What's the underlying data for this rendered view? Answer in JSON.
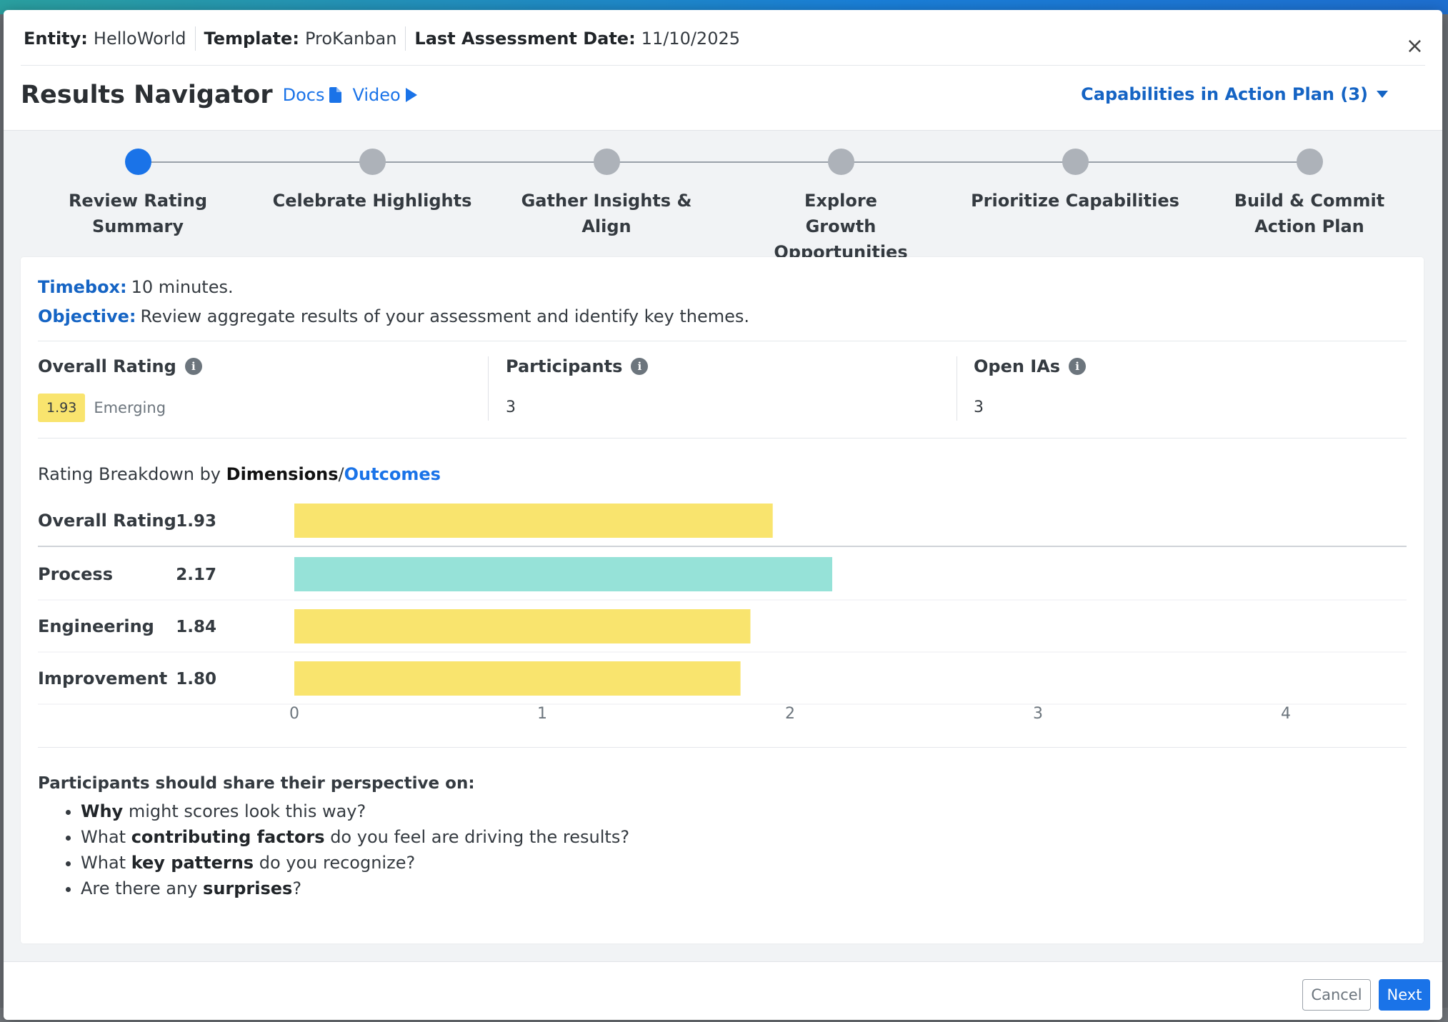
{
  "header": {
    "entity_label": "Entity:",
    "entity_value": "HelloWorld",
    "template_label": "Template:",
    "template_value": "ProKanban",
    "assessment_label": "Last Assessment Date:",
    "assessment_value": "11/10/2025",
    "close_symbol": "×",
    "title": "Results Navigator",
    "docs_label": "Docs",
    "video_label": "Video",
    "capabilities_label": "Capabilities in Action Plan (3)"
  },
  "stepper": {
    "active_index": 0,
    "steps": [
      {
        "label": "Review Rating Summary"
      },
      {
        "label": "Celebrate Highlights"
      },
      {
        "label": "Gather Insights & Align"
      },
      {
        "label": "Explore Growth Opportunities"
      },
      {
        "label": "Prioritize Capabilities"
      },
      {
        "label": "Build & Commit Action Plan"
      }
    ]
  },
  "intro": {
    "timebox_label": "Timebox:",
    "timebox_value": "10 minutes.",
    "objective_label": "Objective:",
    "objective_value": "Review aggregate results of your assessment and identify key themes."
  },
  "stats": {
    "overall_title": "Overall Rating",
    "overall_value": "1.93",
    "overall_level": "Emerging",
    "participants_title": "Participants",
    "participants_value": "3",
    "open_ias_title": "Open IAs",
    "open_ias_value": "3",
    "info_symbol": "i"
  },
  "breakdown": {
    "prefix": "Rating Breakdown by",
    "dimensions_label": "Dimensions",
    "separator": "/",
    "outcomes_label": "Outcomes"
  },
  "chart_data": {
    "type": "bar",
    "orientation": "horizontal",
    "categories": [
      "Overall Rating",
      "Process",
      "Engineering",
      "Improvement"
    ],
    "values": [
      1.93,
      2.17,
      1.84,
      1.8
    ],
    "value_labels": [
      "1.93",
      "2.17",
      "1.84",
      "1.80"
    ],
    "colors": [
      "#f9e46e",
      "#96e2d8",
      "#f9e46e",
      "#f9e46e"
    ],
    "xlim": [
      0,
      4.5
    ],
    "xticks": [
      0,
      1,
      2,
      3,
      4
    ],
    "title": "",
    "xlabel": "",
    "ylabel": ""
  },
  "discussion": {
    "title": "Participants should share their perspective on:",
    "items": [
      {
        "bold": "Why",
        "rest": " might scores look this way?",
        "pre": ""
      },
      {
        "pre": "What ",
        "bold": "contributing factors",
        "rest": " do you feel are driving the results?"
      },
      {
        "pre": "What ",
        "bold": "key patterns",
        "rest": " do you recognize?"
      },
      {
        "pre": "Are there any ",
        "bold": "surprises",
        "rest": "?"
      }
    ]
  },
  "footer": {
    "cancel_label": "Cancel",
    "next_label": "Next"
  },
  "colors": {
    "accent": "#1a73e8",
    "link_dark": "#1564c4",
    "emerging": "#f9e46e",
    "practicing": "#96e2d8"
  }
}
